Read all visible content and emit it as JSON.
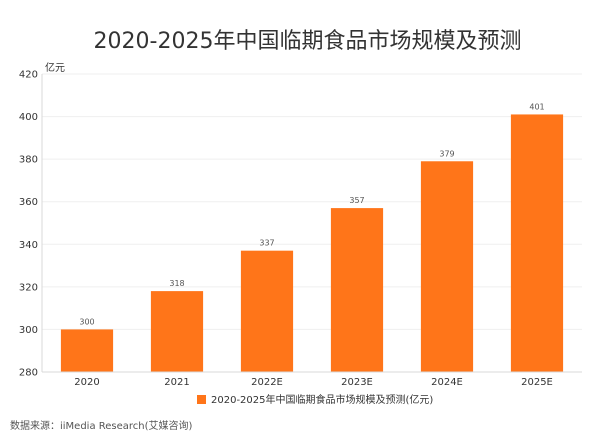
{
  "chart_data": {
    "type": "bar",
    "title": "2020-2025年中国临期食品市场规模及预测",
    "unit_label": "亿元",
    "categories": [
      "2020",
      "2021",
      "2022E",
      "2023E",
      "2024E",
      "2025E"
    ],
    "series": [
      {
        "name": "2020-2025年中国临期食品市场规模及预测(亿元)",
        "values": [
          300,
          318,
          337,
          357,
          379,
          401
        ],
        "color": "#FF7519"
      }
    ],
    "ylim": [
      280,
      420
    ],
    "yticks": [
      280,
      300,
      320,
      340,
      360,
      380,
      400,
      420
    ],
    "grid": true,
    "legend_position": "bottom-center",
    "source": "数据来源：iiMedia Research(艾媒咨询)"
  }
}
